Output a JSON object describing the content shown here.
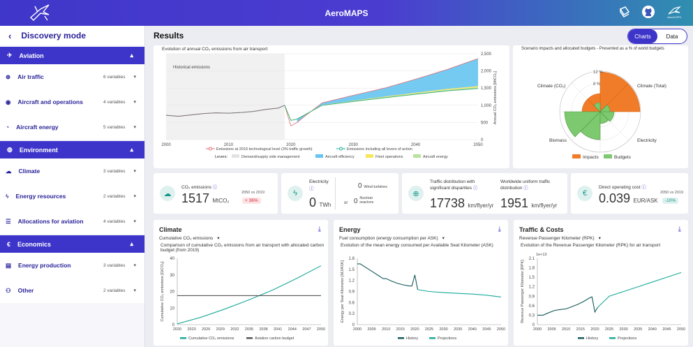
{
  "app": {
    "title": "AeroMAPS"
  },
  "topbar": {
    "icons": [
      "book-icon",
      "github-icon",
      "aerocops-logo"
    ],
    "aerocops_label": "AeroCOPS"
  },
  "sidebar": {
    "back_icon": "chevron-left-icon",
    "title": "Discovery mode",
    "sections": [
      {
        "label": "Aviation",
        "icon": "plane-icon",
        "items": [
          {
            "label": "Air traffic",
            "vars": "6 variables",
            "icon": "traffic-icon"
          },
          {
            "label": "Aircraft and operations",
            "vars": "4 variables",
            "icon": "gauge-icon"
          },
          {
            "label": "Aircraft energy",
            "vars": "5 variables",
            "icon": "energy-icon"
          }
        ]
      },
      {
        "label": "Environment",
        "icon": "globe-icon",
        "items": [
          {
            "label": "Climate",
            "vars": "3 variables",
            "icon": "climate-icon"
          },
          {
            "label": "Energy resources",
            "vars": "2 variables",
            "icon": "bolt-icon"
          },
          {
            "label": "Allocations for aviation",
            "vars": "4 variables",
            "icon": "sliders-icon"
          }
        ]
      },
      {
        "label": "Economics",
        "icon": "euro-icon",
        "items": [
          {
            "label": "Energy production",
            "vars": "3 variables",
            "icon": "factory-icon"
          },
          {
            "label": "Other",
            "vars": "2 variables",
            "icon": "other-icon"
          }
        ]
      }
    ]
  },
  "main": {
    "title": "Results",
    "toggle": {
      "charts": "Charts",
      "data": "Data"
    },
    "emissions_chart": {
      "title": "Evolution of annual CO₂ emissions from air transport",
      "annotation": "Historical emissions",
      "ylabel": "Annual CO₂ emissions [MtCO₂]",
      "legend": {
        "line1": "Emissions at 2019 technological level (3% traffic growth)",
        "line2": "Emissions including all levers of action",
        "levers_label": "Levers:",
        "levers": [
          "Demand/supply side management",
          "Aircraft efficiency",
          "Fleet operations",
          "Aircraft energy"
        ]
      }
    },
    "polar_chart": {
      "title": "Scenario impacts and allocated budgets - Presented as a % of world budgets",
      "labels": {
        "climate_co2": "Climate (CO₂)",
        "climate_total": "Climate (Total)",
        "biomass": "Biomass",
        "electricity": "Electricity"
      },
      "rings": [
        "12 %",
        "8 %"
      ],
      "legend": [
        "Impacts",
        "Budgets"
      ]
    },
    "kpis": {
      "co2": {
        "label": "CO₂ emissions",
        "value": "1517",
        "unit": "MtCO₂",
        "vs": "2050 vs 2019",
        "delta": "+ 36%"
      },
      "electricity": {
        "label": "Electricity",
        "value": "0",
        "unit": "TWh",
        "wind_value": "0",
        "wind_label": "Wind turbines",
        "or": "or",
        "nuclear_value": "0",
        "nuclear_label": "Nuclear reactors"
      },
      "traffic": {
        "label1": "Traffic distribution with significant disparities",
        "value1": "17738",
        "unit1": "km/flyer/yr",
        "label2": "Worldwide uniform traffic distribution",
        "value2": "1951",
        "unit2": "km/flyer/yr"
      },
      "doc": {
        "label": "Direct operating cost",
        "value": "0.039",
        "unit": "EUR/ASK",
        "vs": "2050 vs 2019",
        "delta": "-10%"
      }
    },
    "climate_card": {
      "title": "Climate",
      "select": "Cumulative CO₂ emissions",
      "subtitle": "Comparison of cumulative CO₂ emissions from air transport with allocated carbon budget (from 2019)",
      "ylabel": "Cumulative CO₂ emissions [GtCO₂]",
      "legend": [
        "Cumulative CO₂ emissions",
        "Aviation carbon budget"
      ]
    },
    "energy_card": {
      "title": "Energy",
      "select": "Fuel consumption (energy consumption per ASK)",
      "subtitle": "Evolution of the mean energy consumed per Available Seat Kilometer (ASK)",
      "ylabel": "Energy per Seat Kilometer [MJ/ASK]",
      "legend": [
        "History",
        "Projections"
      ]
    },
    "traffic_card": {
      "title": "Traffic & Costs",
      "select": "Revenue Passenger Kilometer (RPK)",
      "subtitle": "Evolution of the Revenue Passenger Kilometer (RPK) for air transport",
      "ylabel": "Revenue Passenger Kilometer [RPK]",
      "multiplier": "1e+13",
      "legend": [
        "History",
        "Projections"
      ]
    }
  },
  "chart_data": [
    {
      "type": "area",
      "x_ticks": [
        "2000",
        "2010",
        "2020",
        "2030",
        "2040",
        "2050"
      ],
      "y_ticks": [
        "0",
        "500",
        "1,000",
        "1,500",
        "2,000",
        "2,500"
      ],
      "xlim": [
        2000,
        2050
      ],
      "ylim": [
        0,
        2500
      ],
      "series": [
        {
          "name": "Emissions at 2019 technological level (3% traffic growth)",
          "x": [
            2000,
            2002,
            2004,
            2006,
            2008,
            2010,
            2012,
            2014,
            2016,
            2018,
            2019,
            2020,
            2021,
            2022,
            2025,
            2030,
            2035,
            2040,
            2045,
            2050
          ],
          "values": [
            710,
            680,
            720,
            760,
            780,
            770,
            790,
            820,
            880,
            920,
            1000,
            400,
            500,
            650,
            1070,
            1290,
            1500,
            1760,
            2040,
            2360
          ]
        },
        {
          "name": "Emissions including all levers of action",
          "x": [
            2019,
            2020,
            2021,
            2022,
            2025,
            2030,
            2035,
            2040,
            2045,
            2050
          ],
          "values": [
            1000,
            560,
            600,
            700,
            1000,
            1110,
            1220,
            1320,
            1420,
            1490
          ]
        }
      ]
    },
    {
      "type": "line",
      "x_ticks": [
        "2020",
        "2023",
        "2026",
        "2029",
        "2032",
        "2035",
        "2038",
        "2041",
        "2044",
        "2047",
        "2050"
      ],
      "y_ticks": [
        "0",
        "10",
        "20",
        "30",
        "40"
      ],
      "ylim": [
        0,
        40
      ],
      "series": [
        {
          "name": "Cumulative CO₂ emissions",
          "x": [
            2020,
            2025,
            2030,
            2035,
            2040,
            2045,
            2050
          ],
          "values": [
            0.5,
            4.5,
            9.5,
            15,
            21,
            28,
            35.5
          ]
        },
        {
          "name": "Aviation carbon budget",
          "x": [
            2020,
            2050
          ],
          "values": [
            17.5,
            17.5
          ]
        }
      ]
    },
    {
      "type": "line",
      "x_ticks": [
        "2000",
        "2005",
        "2010",
        "2015",
        "2020",
        "2025",
        "2030",
        "2035",
        "2040",
        "2045",
        "2050"
      ],
      "y_ticks": [
        "0",
        "0.3",
        "0.6",
        "0.9",
        "1.2",
        "1.5",
        "1.8"
      ],
      "ylim": [
        0,
        1.8
      ],
      "series": [
        {
          "name": "History",
          "x": [
            2000,
            2001,
            2003,
            2005,
            2007,
            2009,
            2010,
            2012,
            2014,
            2016,
            2018,
            2019,
            2020,
            2021
          ],
          "values": [
            1.65,
            1.65,
            1.55,
            1.45,
            1.35,
            1.25,
            1.25,
            1.18,
            1.12,
            1.08,
            1.05,
            1.05,
            1.35,
            0.95
          ]
        },
        {
          "name": "Projections",
          "x": [
            2021,
            2025,
            2030,
            2035,
            2040,
            2045,
            2050
          ],
          "values": [
            0.95,
            0.9,
            0.87,
            0.85,
            0.83,
            0.8,
            0.75
          ]
        }
      ]
    },
    {
      "type": "line",
      "x_ticks": [
        "2000",
        "2005",
        "2010",
        "2015",
        "2020",
        "2025",
        "2030",
        "2035",
        "2040",
        "2045",
        "2050"
      ],
      "y_ticks": [
        "0",
        "0.3",
        "0.6",
        "0.9",
        "1.2",
        "1.5",
        "1.8",
        "2.1"
      ],
      "ylim": [
        0,
        2.1
      ],
      "series": [
        {
          "name": "History",
          "x": [
            2000,
            2002,
            2004,
            2006,
            2008,
            2010,
            2012,
            2014,
            2016,
            2018,
            2019,
            2020,
            2021
          ],
          "values": [
            0.3,
            0.3,
            0.38,
            0.45,
            0.48,
            0.5,
            0.57,
            0.64,
            0.73,
            0.84,
            0.88,
            0.4,
            0.55
          ]
        },
        {
          "name": "Projections",
          "x": [
            2021,
            2025,
            2030,
            2035,
            2040,
            2045,
            2050
          ],
          "values": [
            0.55,
            0.9,
            1.05,
            1.2,
            1.35,
            1.5,
            1.65
          ]
        }
      ]
    }
  ],
  "colors": {
    "accent": "#3d35c9",
    "teal": "#18a999",
    "orange": "#f07c2a",
    "green": "#7dc96f",
    "blue_area": "#66c4f0",
    "yellow": "#f5e65a",
    "lightgreen": "#b9e29e",
    "red": "#e63946",
    "dark_teal": "#14595a"
  }
}
